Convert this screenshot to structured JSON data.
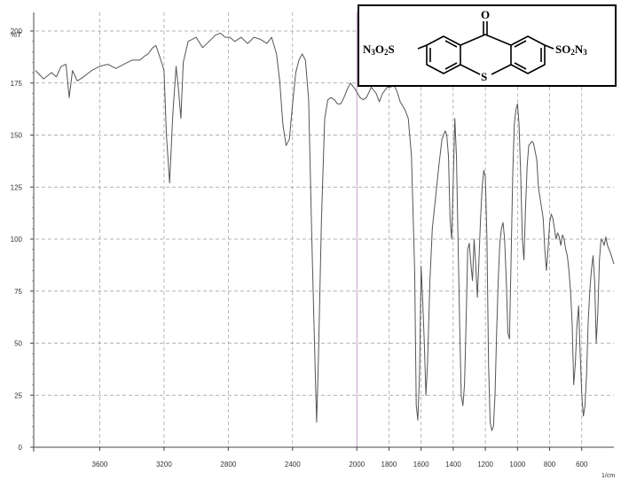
{
  "chart_data": {
    "type": "line",
    "title": "",
    "xlabel": "",
    "ylabel": "%T",
    "x_unit_label": "1/cm",
    "x_reversed": true,
    "xlim": [
      4000,
      400
    ],
    "ylim": [
      0,
      210
    ],
    "x_ticks": [
      3600,
      3200,
      2800,
      2400,
      2000,
      1800,
      1600,
      1400,
      1200,
      1000,
      800,
      600
    ],
    "x_tick_labels": [
      "3600",
      "3200",
      "2800",
      "2400",
      "2000",
      "1800",
      "1600",
      "1400",
      "1200",
      "1000",
      "800",
      "600"
    ],
    "y_ticks": [
      0,
      25,
      50,
      75,
      100,
      125,
      150,
      175,
      200
    ],
    "y_tick_labels": [
      "0",
      "25",
      "50",
      "75",
      "100",
      "125",
      "150",
      "175",
      "200"
    ],
    "grid": true,
    "line_color": "#555555",
    "series": [
      {
        "points": [
          [
            4000,
            181
          ],
          [
            3950,
            177
          ],
          [
            3900,
            180
          ],
          [
            3870,
            178
          ],
          [
            3840,
            183
          ],
          [
            3810,
            184
          ],
          [
            3790,
            168
          ],
          [
            3770,
            181
          ],
          [
            3740,
            176
          ],
          [
            3700,
            178
          ],
          [
            3650,
            181
          ],
          [
            3600,
            183
          ],
          [
            3550,
            184
          ],
          [
            3500,
            182
          ],
          [
            3450,
            184
          ],
          [
            3400,
            186
          ],
          [
            3350,
            186
          ],
          [
            3320,
            188
          ],
          [
            3300,
            189
          ],
          [
            3270,
            192
          ],
          [
            3250,
            193
          ],
          [
            3220,
            186
          ],
          [
            3200,
            181
          ],
          [
            3185,
            150
          ],
          [
            3165,
            127
          ],
          [
            3145,
            160
          ],
          [
            3125,
            183
          ],
          [
            3110,
            172
          ],
          [
            3095,
            158
          ],
          [
            3080,
            185
          ],
          [
            3050,
            195
          ],
          [
            3000,
            197
          ],
          [
            2960,
            192
          ],
          [
            2920,
            195
          ],
          [
            2880,
            198
          ],
          [
            2850,
            199
          ],
          [
            2820,
            197
          ],
          [
            2790,
            197
          ],
          [
            2760,
            195
          ],
          [
            2720,
            197
          ],
          [
            2680,
            194
          ],
          [
            2640,
            197
          ],
          [
            2600,
            196
          ],
          [
            2560,
            194
          ],
          [
            2530,
            197
          ],
          [
            2500,
            189
          ],
          [
            2480,
            176
          ],
          [
            2460,
            155
          ],
          [
            2440,
            145
          ],
          [
            2420,
            148
          ],
          [
            2400,
            165
          ],
          [
            2380,
            180
          ],
          [
            2360,
            186
          ],
          [
            2340,
            189
          ],
          [
            2320,
            186
          ],
          [
            2300,
            167
          ],
          [
            2280,
            100
          ],
          [
            2260,
            40
          ],
          [
            2250,
            12
          ],
          [
            2240,
            40
          ],
          [
            2220,
            110
          ],
          [
            2200,
            158
          ],
          [
            2180,
            167
          ],
          [
            2160,
            168
          ],
          [
            2140,
            167
          ],
          [
            2120,
            165
          ],
          [
            2100,
            165
          ],
          [
            2080,
            168
          ],
          [
            2060,
            172
          ],
          [
            2040,
            175
          ],
          [
            2010,
            172
          ],
          [
            1980,
            168
          ],
          [
            1960,
            167
          ],
          [
            1940,
            168
          ],
          [
            1910,
            173
          ],
          [
            1880,
            170
          ],
          [
            1860,
            166
          ],
          [
            1840,
            170
          ],
          [
            1810,
            173
          ],
          [
            1790,
            173
          ],
          [
            1770,
            174
          ],
          [
            1750,
            171
          ],
          [
            1730,
            166
          ],
          [
            1700,
            162
          ],
          [
            1680,
            158
          ],
          [
            1660,
            140
          ],
          [
            1640,
            85
          ],
          [
            1630,
            20
          ],
          [
            1620,
            13
          ],
          [
            1610,
            35
          ],
          [
            1600,
            87
          ],
          [
            1590,
            70
          ],
          [
            1580,
            50
          ],
          [
            1570,
            25
          ],
          [
            1560,
            40
          ],
          [
            1545,
            80
          ],
          [
            1530,
            105
          ],
          [
            1510,
            120
          ],
          [
            1490,
            135
          ],
          [
            1470,
            148
          ],
          [
            1450,
            152
          ],
          [
            1440,
            150
          ],
          [
            1430,
            140
          ],
          [
            1420,
            110
          ],
          [
            1410,
            100
          ],
          [
            1400,
            128
          ],
          [
            1390,
            158
          ],
          [
            1380,
            140
          ],
          [
            1370,
            100
          ],
          [
            1360,
            60
          ],
          [
            1350,
            25
          ],
          [
            1340,
            20
          ],
          [
            1330,
            30
          ],
          [
            1320,
            60
          ],
          [
            1310,
            95
          ],
          [
            1300,
            98
          ],
          [
            1290,
            88
          ],
          [
            1280,
            80
          ],
          [
            1270,
            100
          ],
          [
            1260,
            88
          ],
          [
            1250,
            72
          ],
          [
            1240,
            90
          ],
          [
            1230,
            110
          ],
          [
            1220,
            125
          ],
          [
            1210,
            133
          ],
          [
            1200,
            130
          ],
          [
            1190,
            100
          ],
          [
            1180,
            40
          ],
          [
            1170,
            12
          ],
          [
            1160,
            8
          ],
          [
            1150,
            10
          ],
          [
            1140,
            25
          ],
          [
            1130,
            55
          ],
          [
            1120,
            80
          ],
          [
            1110,
            98
          ],
          [
            1100,
            105
          ],
          [
            1090,
            108
          ],
          [
            1080,
            100
          ],
          [
            1070,
            80
          ],
          [
            1060,
            55
          ],
          [
            1050,
            52
          ],
          [
            1040,
            90
          ],
          [
            1030,
            130
          ],
          [
            1020,
            155
          ],
          [
            1010,
            162
          ],
          [
            1000,
            165
          ],
          [
            990,
            155
          ],
          [
            980,
            130
          ],
          [
            970,
            100
          ],
          [
            960,
            90
          ],
          [
            950,
            115
          ],
          [
            940,
            135
          ],
          [
            930,
            145
          ],
          [
            920,
            146
          ],
          [
            910,
            147
          ],
          [
            900,
            146
          ],
          [
            890,
            142
          ],
          [
            880,
            138
          ],
          [
            870,
            125
          ],
          [
            860,
            120
          ],
          [
            850,
            115
          ],
          [
            840,
            110
          ],
          [
            830,
            95
          ],
          [
            820,
            85
          ],
          [
            810,
            95
          ],
          [
            800,
            108
          ],
          [
            790,
            112
          ],
          [
            780,
            110
          ],
          [
            770,
            105
          ],
          [
            760,
            100
          ],
          [
            750,
            103
          ],
          [
            740,
            101
          ],
          [
            730,
            97
          ],
          [
            720,
            102
          ],
          [
            710,
            100
          ],
          [
            700,
            95
          ],
          [
            690,
            92
          ],
          [
            680,
            85
          ],
          [
            670,
            75
          ],
          [
            660,
            60
          ],
          [
            650,
            30
          ],
          [
            640,
            40
          ],
          [
            630,
            58
          ],
          [
            620,
            68
          ],
          [
            610,
            45
          ],
          [
            600,
            25
          ],
          [
            590,
            15
          ],
          [
            580,
            20
          ],
          [
            570,
            35
          ],
          [
            560,
            60
          ],
          [
            550,
            75
          ],
          [
            540,
            85
          ],
          [
            530,
            92
          ],
          [
            520,
            80
          ],
          [
            510,
            50
          ],
          [
            500,
            65
          ],
          [
            490,
            90
          ],
          [
            480,
            100
          ],
          [
            470,
            99
          ],
          [
            460,
            97
          ],
          [
            450,
            101
          ],
          [
            440,
            97
          ],
          [
            420,
            93
          ],
          [
            400,
            88
          ]
        ]
      }
    ]
  },
  "structure": {
    "carbonyl_label": "O",
    "sulfur_label": "S",
    "left_group_label": "N3O2S",
    "right_group_label": "SO2N3"
  }
}
